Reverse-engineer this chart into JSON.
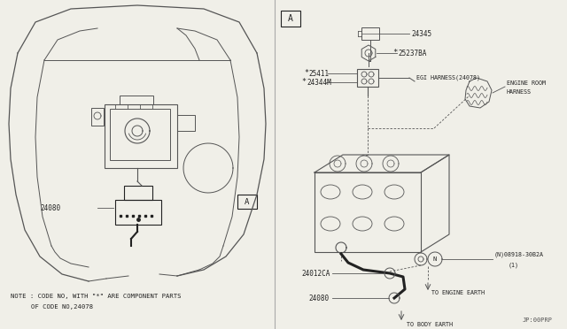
{
  "bg_color": "#f0efe8",
  "line_color": "#555555",
  "dark_line": "#222222",
  "note_line1": "NOTE : CODE NO, WITH \"*\" ARE COMPONENT PARTS",
  "note_line2": "OF CODE NO,24078",
  "footer": "JP:00PRP"
}
